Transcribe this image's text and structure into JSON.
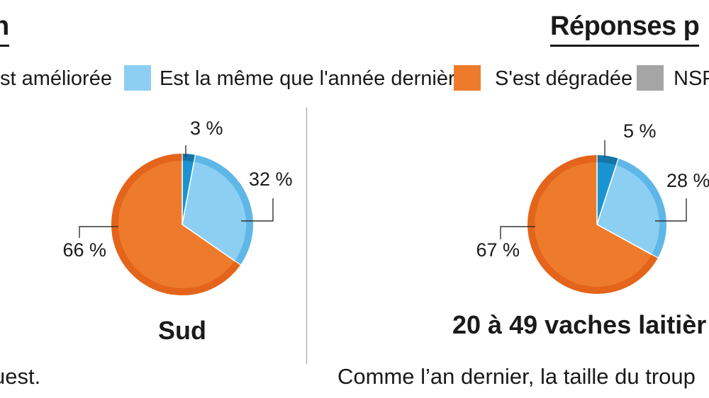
{
  "headings": {
    "left": "n",
    "right": "Réponses p"
  },
  "legend": [
    {
      "label": "st améliorée",
      "color": "#1c93d1"
    },
    {
      "label": "Est la même que l'année dernière",
      "color": "#8dcff2"
    },
    {
      "label": "S'est dégradée",
      "color": "#ee7b2c"
    },
    {
      "label": "NSP",
      "color": "#a5a5a5"
    }
  ],
  "chart_data": [
    {
      "type": "pie",
      "title": "Sud",
      "slices": [
        {
          "category": "st améliorée",
          "value": 3,
          "label": "3 %"
        },
        {
          "category": "Est la même que l'année dernière",
          "value": 32,
          "label": "32 %"
        },
        {
          "category": "S'est dégradée",
          "value": 66,
          "label": "66 %"
        }
      ]
    },
    {
      "type": "pie",
      "title": "20 à 49 vaches laitièr",
      "slices": [
        {
          "category": "st améliorée",
          "value": 5,
          "label": "5 %"
        },
        {
          "category": "Est la même que l'année dernière",
          "value": 28,
          "label": "28 %"
        },
        {
          "category": "S'est dégradée",
          "value": 67,
          "label": "67 %"
        }
      ]
    }
  ],
  "footnotes": {
    "left": "uest.",
    "right": "Comme l’an dernier, la taille du troup"
  }
}
